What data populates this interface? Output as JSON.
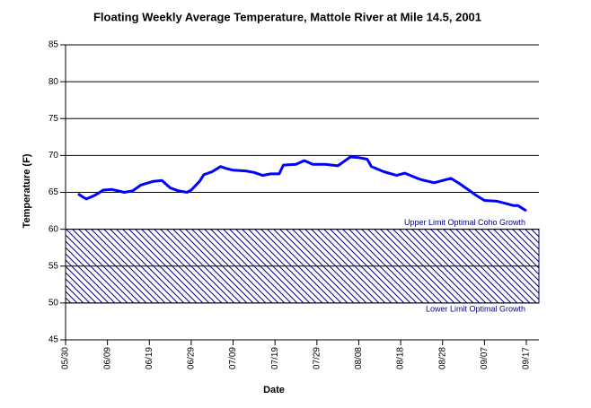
{
  "chart_data": {
    "type": "line",
    "title": "Floating Weekly Average Temperature, Mattole River at Mile 14.5, 2001",
    "x_label": "Date",
    "y_label": "Temperature (F)",
    "xlim": [
      "05/30",
      "09/20"
    ],
    "xticks": [
      "05/30",
      "06/09",
      "06/19",
      "06/29",
      "07/09",
      "07/19",
      "07/29",
      "08/08",
      "08/18",
      "08/28",
      "09/07",
      "09/17"
    ],
    "ylim": [
      45,
      85
    ],
    "yticks": [
      45,
      50,
      55,
      60,
      65,
      70,
      75,
      80,
      85
    ],
    "grid": true,
    "x": [
      "06/02",
      "06/03",
      "06/04",
      "06/06",
      "06/08",
      "06/10",
      "06/13",
      "06/15",
      "06/17",
      "06/20",
      "06/22",
      "06/24",
      "06/26",
      "06/28",
      "06/29",
      "07/01",
      "07/02",
      "07/04",
      "07/06",
      "07/07",
      "07/09",
      "07/12",
      "07/14",
      "07/16",
      "07/18",
      "07/20",
      "07/21",
      "07/24",
      "07/26",
      "07/28",
      "07/31",
      "08/03",
      "08/06",
      "08/08",
      "08/10",
      "08/11",
      "08/14",
      "08/17",
      "08/19",
      "08/22",
      "08/23",
      "08/26",
      "08/28",
      "08/30",
      "09/01",
      "09/04",
      "09/05",
      "09/07",
      "09/10",
      "09/12",
      "09/14",
      "09/15",
      "09/17"
    ],
    "series": [
      {
        "color": "#0000ff",
        "values": [
          64.8,
          64.4,
          64.1,
          64.6,
          65.3,
          65.4,
          65.0,
          65.2,
          66.0,
          66.5,
          66.6,
          65.6,
          65.2,
          65.0,
          65.3,
          66.5,
          67.4,
          67.8,
          68.5,
          68.3,
          68.0,
          67.9,
          67.7,
          67.3,
          67.5,
          67.5,
          68.7,
          68.8,
          69.3,
          68.8,
          68.8,
          68.6,
          69.8,
          69.7,
          69.5,
          68.5,
          67.8,
          67.3,
          67.6,
          66.9,
          66.7,
          66.3,
          66.6,
          66.9,
          66.2,
          65.0,
          64.6,
          63.9,
          63.8,
          63.5,
          63.2,
          63.2,
          62.5
        ]
      }
    ],
    "upper_limit": {
      "label": "Upper Limit Optimal Coho Growth",
      "value": 60
    },
    "lower_limit": {
      "label": "Lower Limit Optimal Growth",
      "value": 50
    },
    "band_color": "#000080"
  }
}
